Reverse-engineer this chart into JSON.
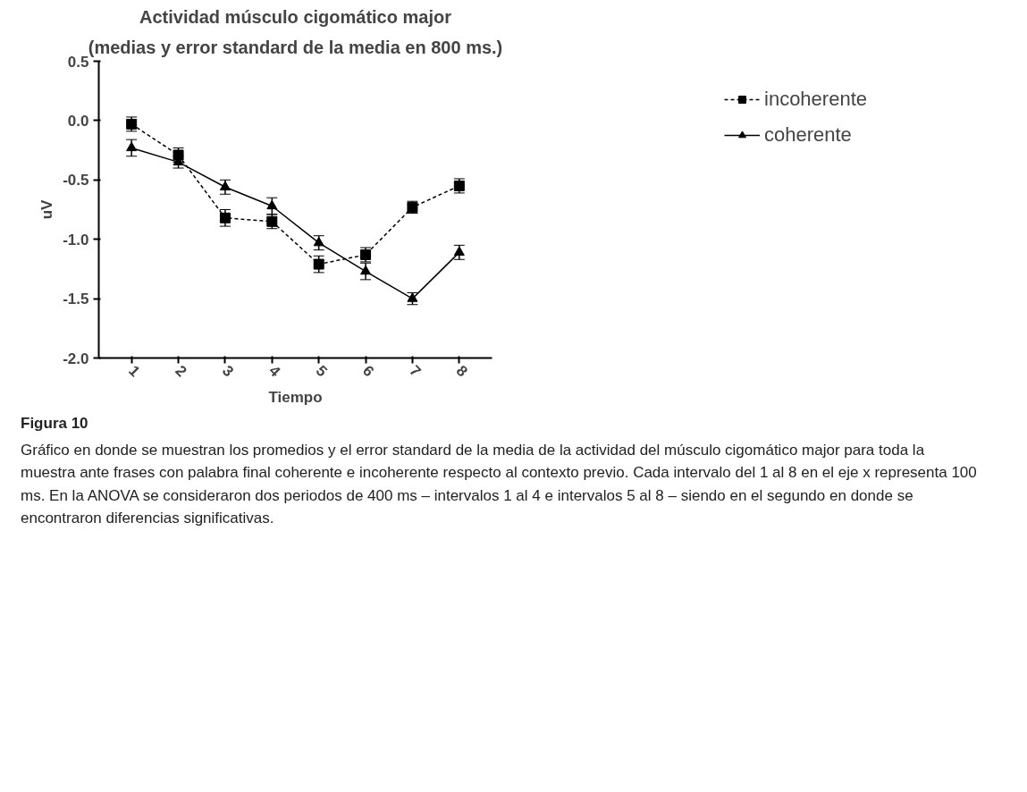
{
  "chart_data": {
    "type": "line",
    "title": "Actividad músculo cigomático major",
    "subtitle": "(medias y error standard de la media en 800 ms.)",
    "xlabel": "Tiempo",
    "ylabel": "uV",
    "categories": [
      "1",
      "2",
      "3",
      "4",
      "5",
      "6",
      "7",
      "8"
    ],
    "series": [
      {
        "name": "incoherente",
        "color": "#000000",
        "marker": "square",
        "line_style": "dashed",
        "values": [
          -0.03,
          -0.29,
          -0.82,
          -0.85,
          -1.21,
          -1.13,
          -0.73,
          -0.55
        ],
        "errors": [
          0.06,
          0.06,
          0.07,
          0.06,
          0.07,
          0.06,
          0.05,
          0.06
        ]
      },
      {
        "name": "coherente",
        "color": "#000000",
        "marker": "triangle",
        "line_style": "solid",
        "values": [
          -0.23,
          -0.35,
          -0.56,
          -0.72,
          -1.03,
          -1.27,
          -1.5,
          -1.11
        ],
        "errors": [
          0.07,
          0.05,
          0.06,
          0.07,
          0.06,
          0.07,
          0.05,
          0.06
        ]
      }
    ],
    "ylim": [
      -2.0,
      0.5
    ],
    "yticks": [
      {
        "value": -2.0,
        "label": "-2.0"
      },
      {
        "value": -1.5,
        "label": "-1.5"
      },
      {
        "value": -1.0,
        "label": "-1.0"
      },
      {
        "value": -0.5,
        "label": "-0.5"
      },
      {
        "value": 0.0,
        "label": "0.0"
      },
      {
        "value": 0.5,
        "label": "0.5"
      }
    ],
    "grid": false,
    "legend": "top right",
    "annotations": [
      "Figura 10",
      "Gráfico en donde se muestran los promedios y el error standard de la media de la actividad del músculo cigomático major para toda la muestra ante frases con palabra final coherente e incoherente respecto al contexto previo. Cada intervalo del 1 al 8 en el eje x representa 100 ms. En la ANOVA se consideraron dos periodos de 400 ms – intervalos 1 al 4 e intervalos 5 al 8 – siendo en el segundo en donde se encontraron diferencias significativas."
    ]
  }
}
